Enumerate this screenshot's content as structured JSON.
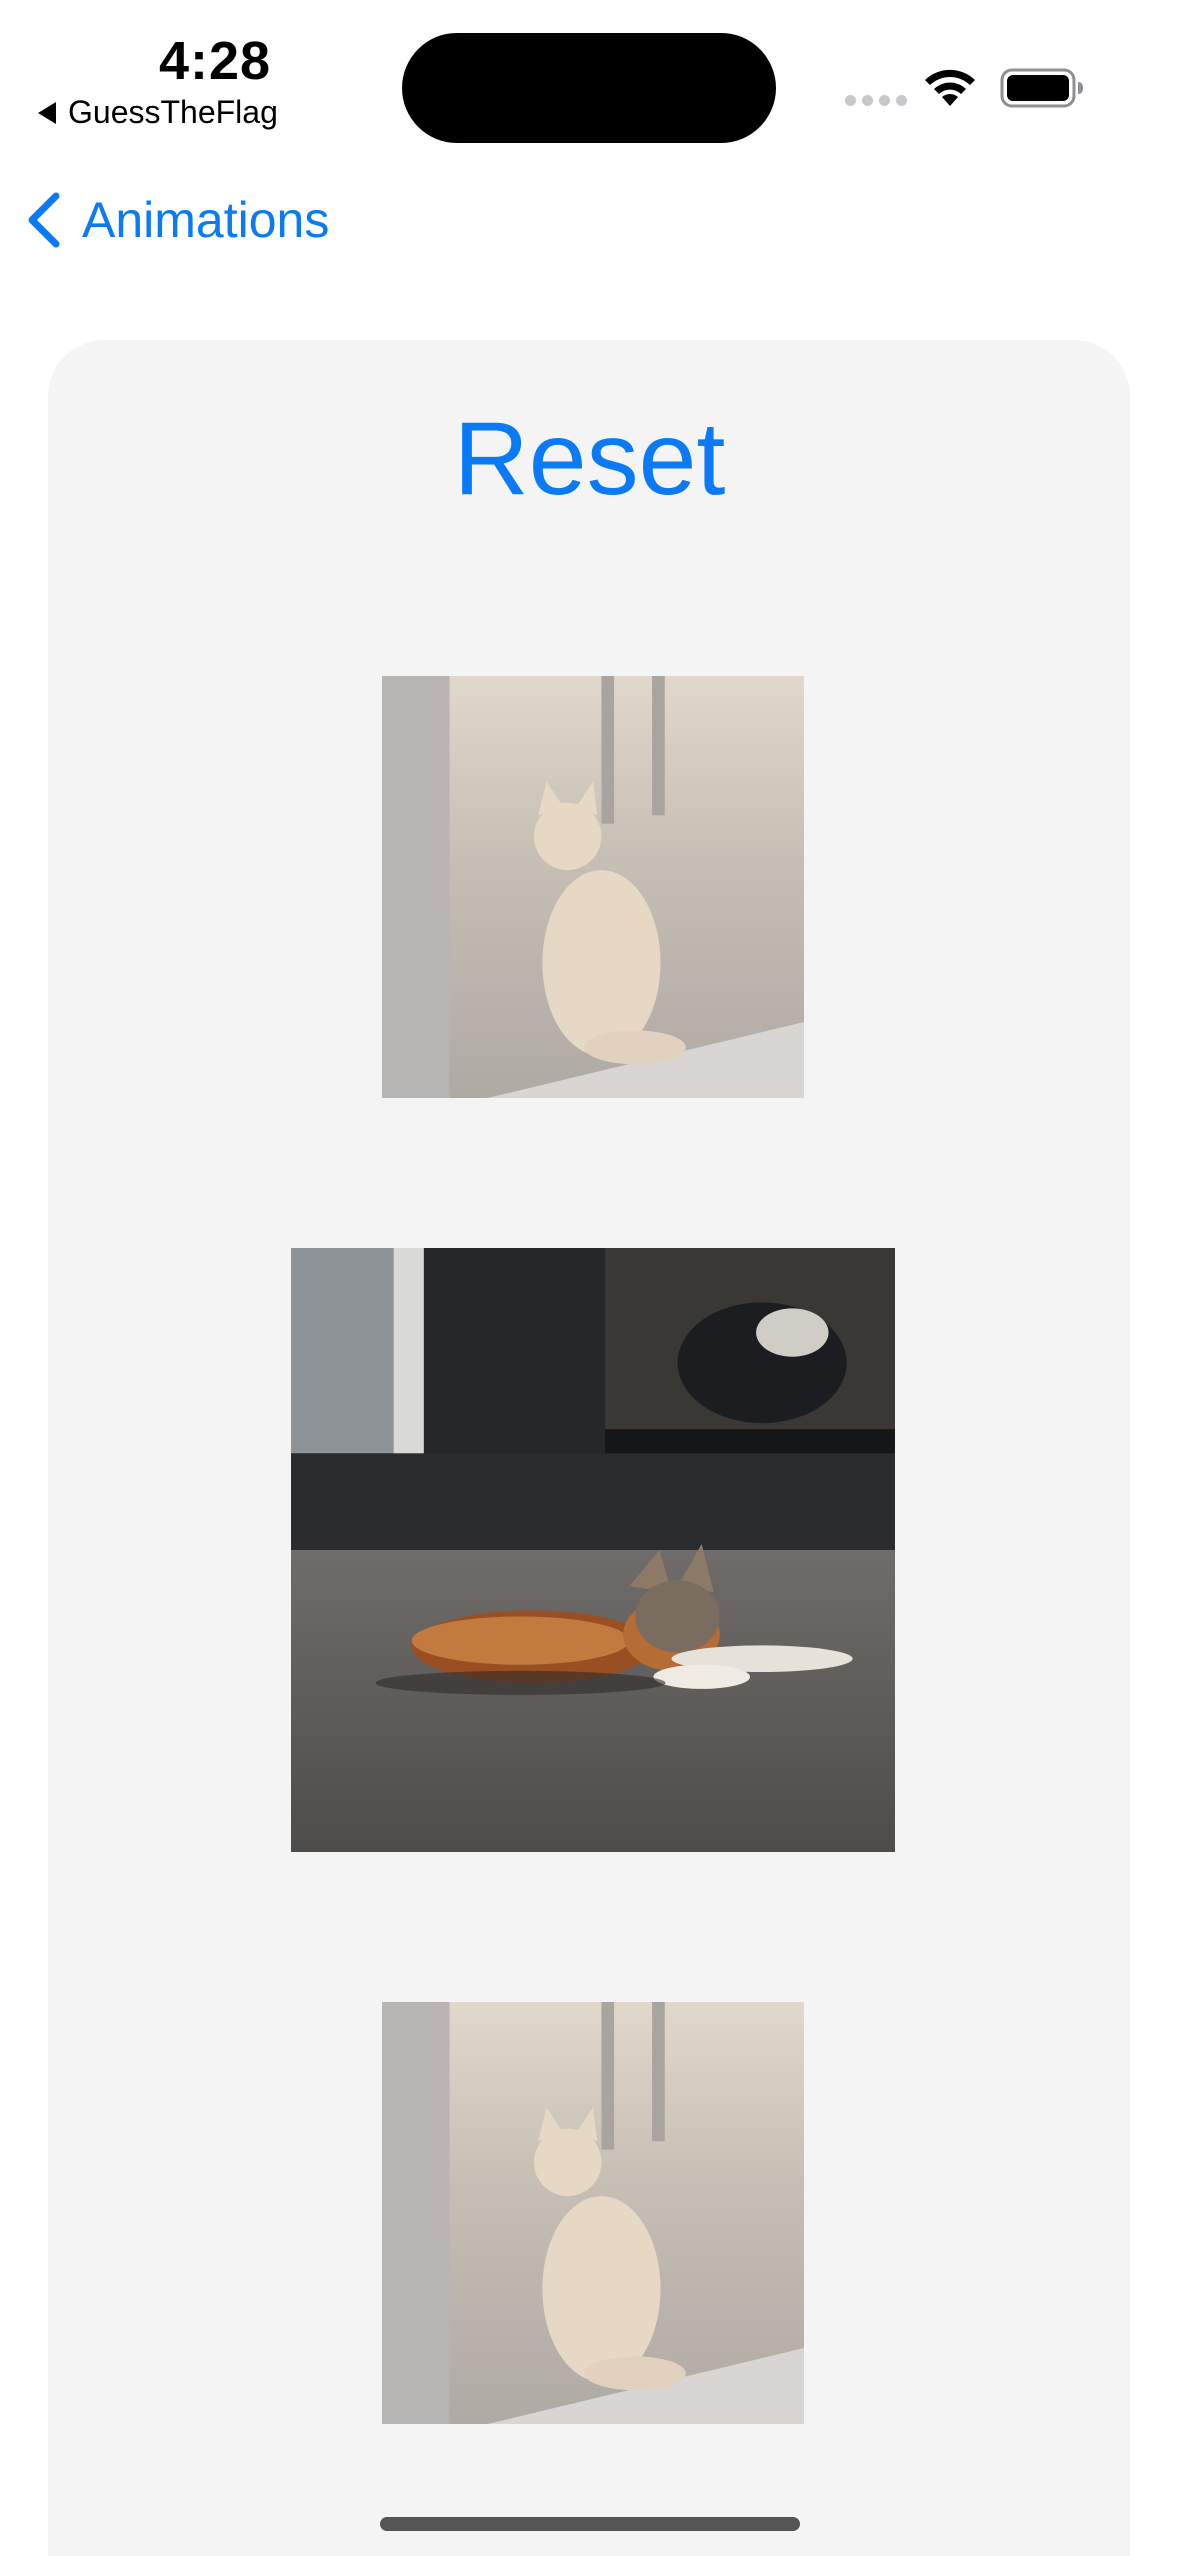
{
  "status_bar": {
    "time": "4:28",
    "back_app": "GuessTheFlag"
  },
  "nav": {
    "back_label": "Animations"
  },
  "card": {
    "reset_label": "Reset"
  },
  "images": [
    {
      "name": "sitting-cat-photo",
      "state": "faded"
    },
    {
      "name": "lying-cat-photo",
      "state": "full"
    },
    {
      "name": "sitting-cat-photo",
      "state": "faded"
    }
  ],
  "colors": {
    "accent": "#0a7af6",
    "card_background": "#f4f4f4"
  }
}
